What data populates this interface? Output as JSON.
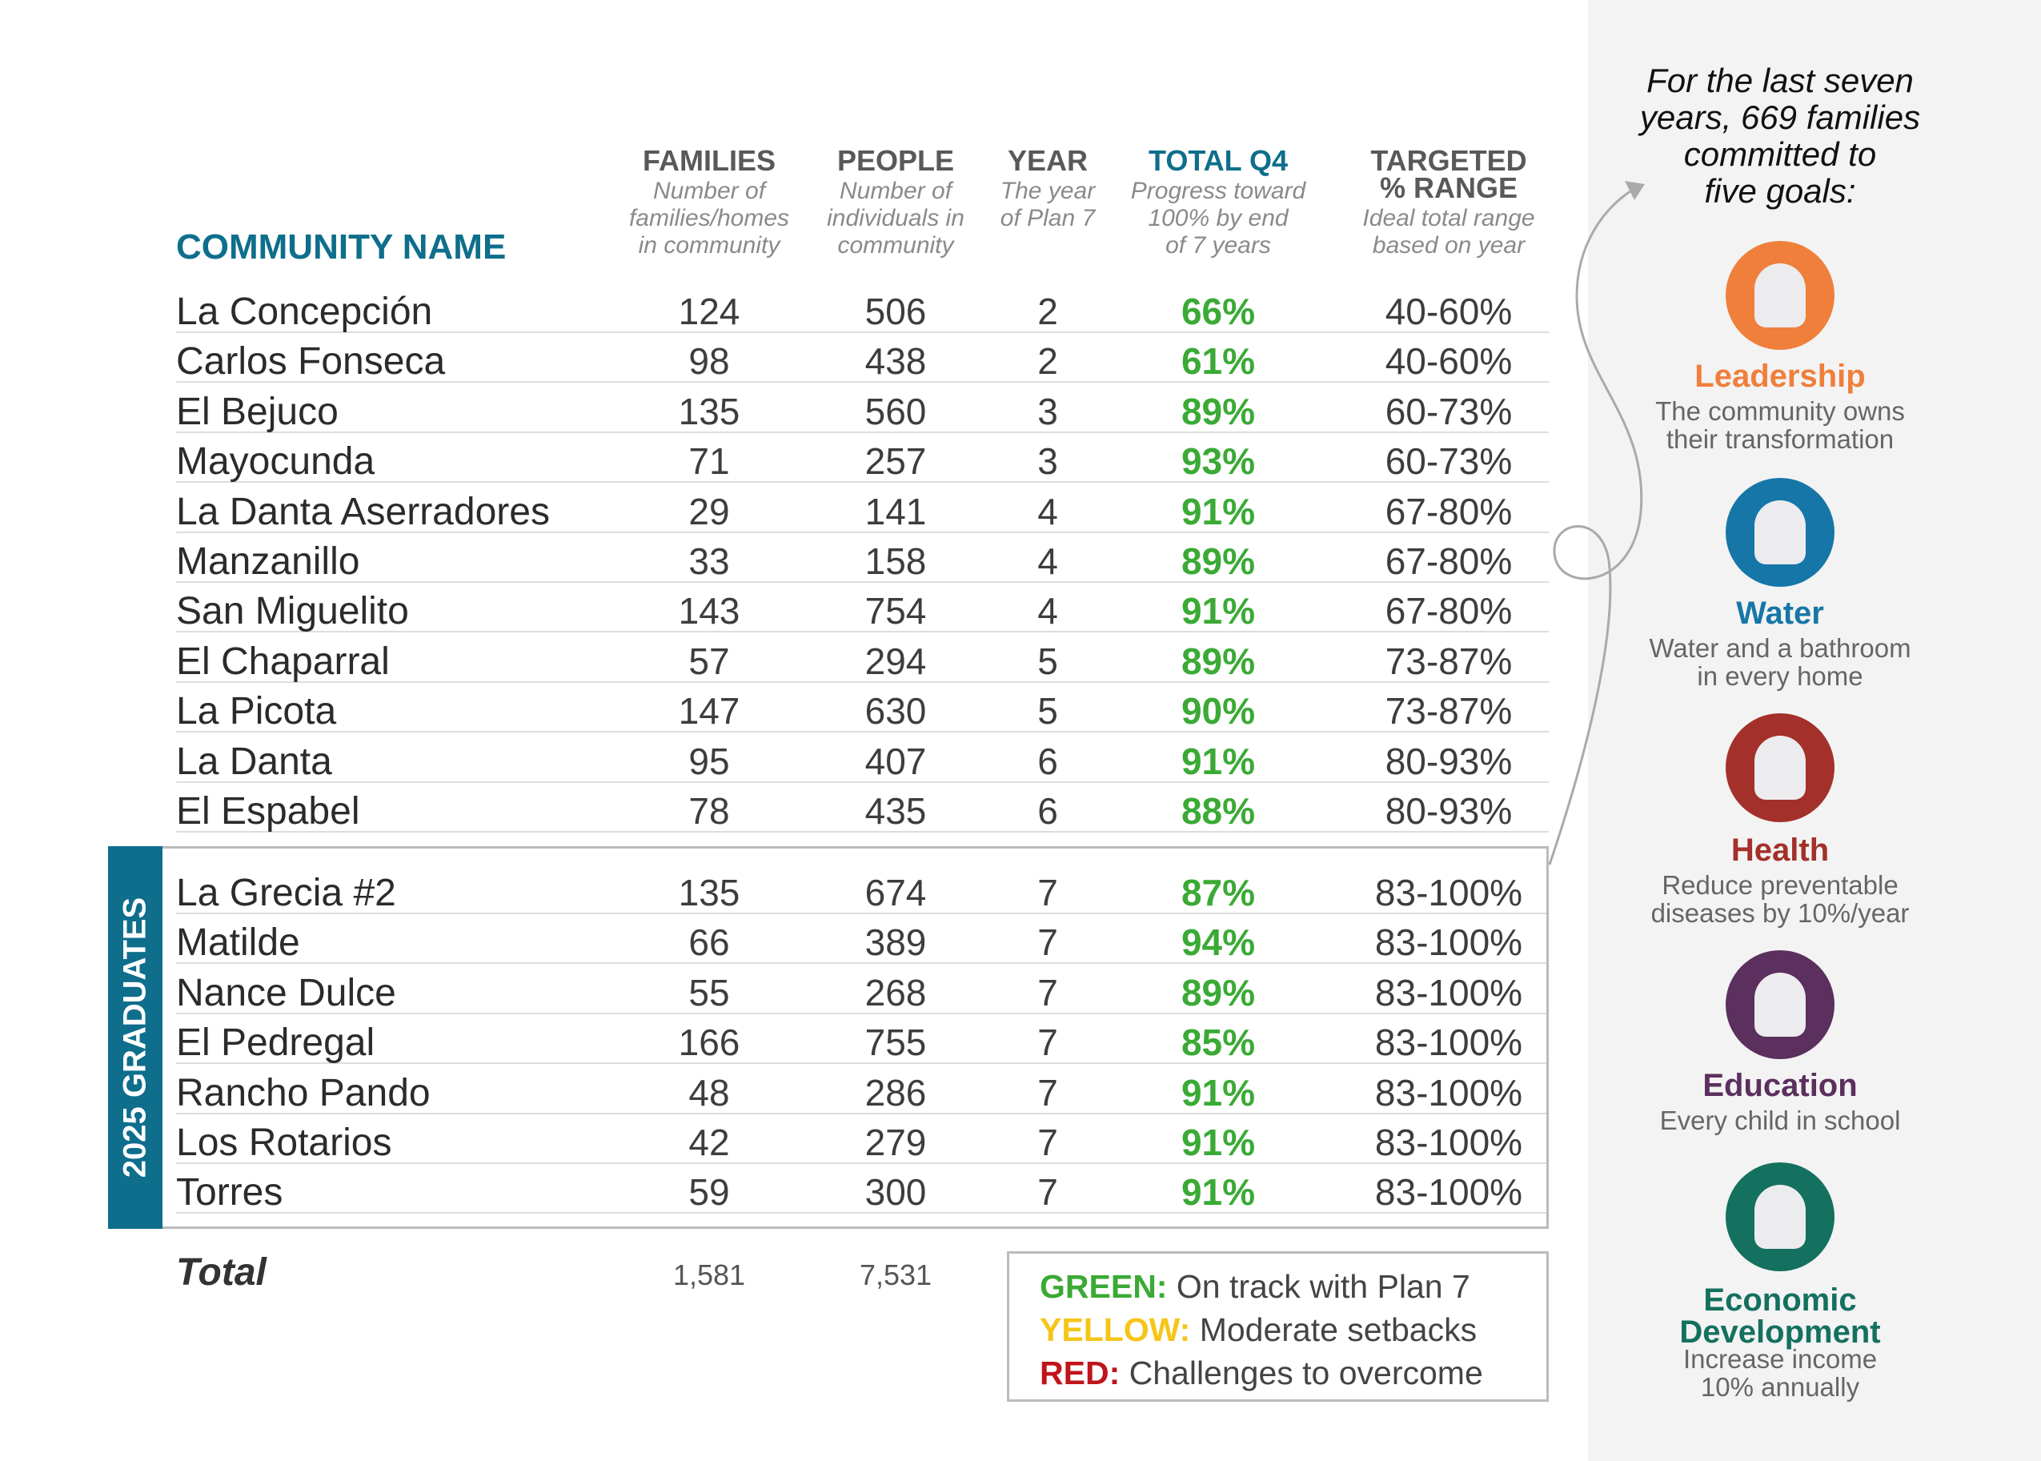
{
  "headers": {
    "community": "COMMUNITY NAME",
    "families": "FAMILIES",
    "families_sub": [
      "Number of",
      "families/homes",
      "in community"
    ],
    "people": "PEOPLE",
    "people_sub": [
      "Number of",
      "individuals in",
      "community"
    ],
    "year": "YEAR",
    "year_sub": [
      "The year",
      "of Plan 7"
    ],
    "total": "TOTAL Q4",
    "total_sub": [
      "Progress toward",
      "100% by end",
      "of 7 years"
    ],
    "targeted": [
      "TARGETED",
      "% RANGE"
    ],
    "targeted_sub": [
      "Ideal total range",
      "based on year"
    ]
  },
  "rows": [
    [
      "La Concepción",
      "124",
      "506",
      "2",
      "66%",
      "40-60%"
    ],
    [
      "Carlos Fonseca",
      "98",
      "438",
      "2",
      "61%",
      "40-60%"
    ],
    [
      "El Bejuco",
      "135",
      "560",
      "3",
      "89%",
      "60-73%"
    ],
    [
      "Mayocunda",
      "71",
      "257",
      "3",
      "93%",
      "60-73%"
    ],
    [
      "La Danta Aserradores",
      "29",
      "141",
      "4",
      "91%",
      "67-80%"
    ],
    [
      "Manzanillo",
      "33",
      "158",
      "4",
      "89%",
      "67-80%"
    ],
    [
      "San Miguelito",
      "143",
      "754",
      "4",
      "91%",
      "67-80%"
    ],
    [
      "El Chaparral",
      "57",
      "294",
      "5",
      "89%",
      "73-87%"
    ],
    [
      "La Picota",
      "147",
      "630",
      "5",
      "90%",
      "73-87%"
    ],
    [
      "La Danta",
      "95",
      "407",
      "6",
      "91%",
      "80-93%"
    ],
    [
      "El Espabel",
      "78",
      "435",
      "6",
      "88%",
      "80-93%"
    ]
  ],
  "graduates_label": "2025 GRADUATES",
  "graduates": [
    [
      "La Grecia #2",
      "135",
      "674",
      "7",
      "87%",
      "83-100%"
    ],
    [
      "Matilde",
      "66",
      "389",
      "7",
      "94%",
      "83-100%"
    ],
    [
      "Nance Dulce",
      "55",
      "268",
      "7",
      "89%",
      "83-100%"
    ],
    [
      "El Pedregal",
      "166",
      "755",
      "7",
      "85%",
      "83-100%"
    ],
    [
      "Rancho Pando",
      "48",
      "286",
      "7",
      "91%",
      "83-100%"
    ],
    [
      "Los Rotarios",
      "42",
      "279",
      "7",
      "91%",
      "83-100%"
    ],
    [
      "Torres",
      "59",
      "300",
      "7",
      "91%",
      "83-100%"
    ]
  ],
  "total": {
    "label": "Total",
    "families": "1,581",
    "people": "7,531"
  },
  "legend": [
    {
      "key": "GREEN:",
      "text": "On track with Plan 7",
      "color": "#3aaa35"
    },
    {
      "key": "YELLOW:",
      "text": "Moderate setbacks",
      "color": "#f5c518"
    },
    {
      "key": "RED:",
      "text": "Challenges to overcome",
      "color": "#c0141b"
    }
  ],
  "side": {
    "intro": [
      "For the last seven",
      "years, 669 families",
      "committed to",
      "five goals:"
    ],
    "goals": [
      {
        "title": "Leadership",
        "desc": [
          "The community owns",
          "their transformation"
        ],
        "color": "#ef7f3b",
        "icon": "lightbulb-icon"
      },
      {
        "title": "Water",
        "desc": [
          "Water and a bathroom",
          "in every home"
        ],
        "color": "#1676a8",
        "icon": "water-drop-icon"
      },
      {
        "title": "Health",
        "desc": [
          "Reduce preventable",
          "diseases by 10%/year"
        ],
        "color": "#a3302a",
        "icon": "heart-icon"
      },
      {
        "title": "Education",
        "desc": [
          "Every child in school"
        ],
        "color": "#5b2f5e",
        "icon": "backpack-icon"
      },
      {
        "title": "Economic Development",
        "desc": [
          "Increase income",
          "10% annually"
        ],
        "color": "#14705f",
        "icon": "chart-icon"
      }
    ]
  }
}
